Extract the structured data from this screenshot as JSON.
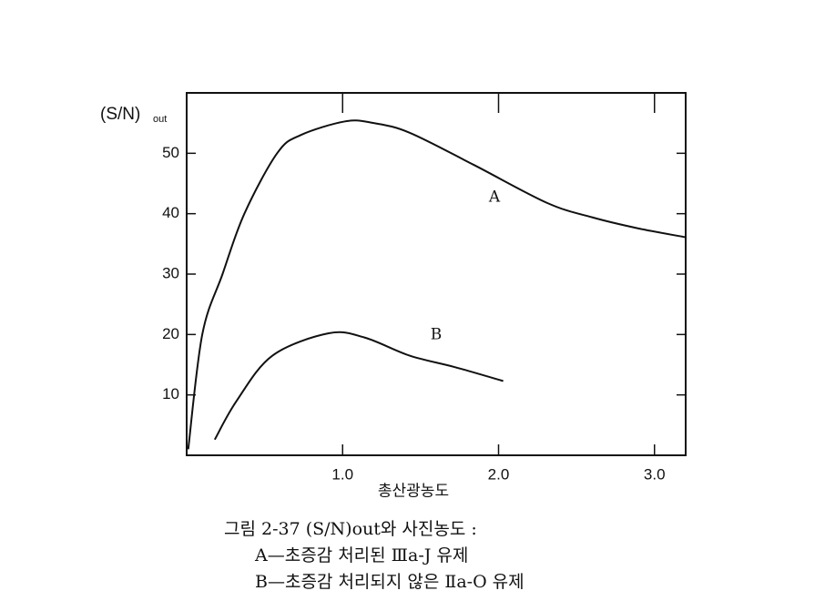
{
  "chart_data": {
    "type": "line",
    "y_label": "(S/N)",
    "y_label_sub": "out",
    "x_label": "총산광농도",
    "xlim": [
      0,
      3.2
    ],
    "ylim": [
      0,
      60
    ],
    "xticks": [
      {
        "value": 1,
        "label": "1.0"
      },
      {
        "value": 2,
        "label": "2.0"
      },
      {
        "value": 3,
        "label": "3.0"
      }
    ],
    "yticks": [
      10,
      20,
      30,
      40,
      50
    ],
    "series": [
      {
        "name": "A",
        "color": "#111111",
        "x": [
          0.01,
          0.1,
          0.23,
          0.37,
          0.58,
          0.73,
          1.02,
          1.2,
          1.43,
          1.84,
          2.31,
          2.6,
          2.89,
          3.2
        ],
        "values": [
          1,
          20,
          30,
          40,
          50,
          53,
          55.3,
          55,
          53.4,
          48.1,
          41.8,
          39.4,
          37.6,
          36.1
        ]
      },
      {
        "name": "B",
        "color": "#111111",
        "x": [
          0.18,
          0.32,
          0.55,
          0.91,
          1.14,
          1.43,
          1.72,
          2.03
        ],
        "values": [
          2.6,
          9,
          16.5,
          20.2,
          19.5,
          16.5,
          14.6,
          12.3
        ]
      }
    ],
    "caption": [
      "그림 2-37  (S/N)out와 사진농도 :",
      "A—초증감 처리된 Ⅲa-J 유제",
      "B—초증감 처리되지 않은 Ⅱa-O 유제"
    ]
  }
}
